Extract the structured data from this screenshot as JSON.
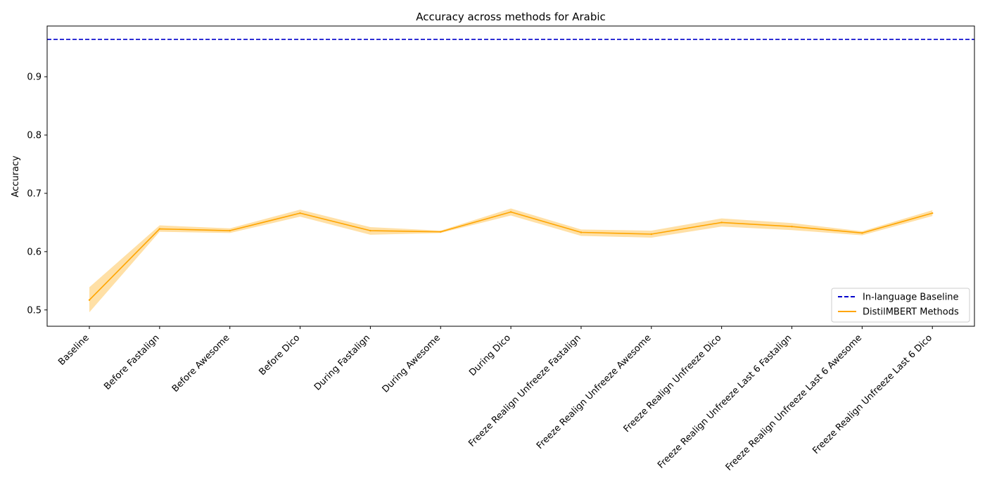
{
  "chart_data": {
    "type": "line",
    "title": "Accuracy across methods for Arabic",
    "xlabel": "",
    "ylabel": "Accuracy",
    "ylim": [
      0.472,
      0.987
    ],
    "yticks": [
      0.5,
      0.6,
      0.7,
      0.8,
      0.9
    ],
    "ytick_labels": [
      "0.5",
      "0.6",
      "0.7",
      "0.8",
      "0.9"
    ],
    "grid": false,
    "legend_position": "bottom-right",
    "categories": [
      "Baseline",
      "Before Fastalign",
      "Before Awesome",
      "Before Dico",
      "During Fastalign",
      "During Awesome",
      "During Dico",
      "Freeze Realign Unfreeze Fastalign",
      "Freeze Realign Unfreeze Awesome",
      "Freeze Realign Unfreeze Dico",
      "Freeze Realign Unfreeze Last 6 Fastalign",
      "Freeze Realign Unfreeze Last 6 Awesome",
      "Freeze Realign Unfreeze Last 6 Dico"
    ],
    "reference_line": {
      "name": "In-language Baseline",
      "value": 0.964,
      "color": "#0000cc",
      "style": "dashed"
    },
    "series": [
      {
        "name": "DistilMBERT Methods",
        "color": "#ffa500",
        "values": [
          0.517,
          0.639,
          0.636,
          0.666,
          0.636,
          0.634,
          0.668,
          0.633,
          0.63,
          0.65,
          0.643,
          0.632,
          0.666
        ],
        "lower": [
          0.496,
          0.634,
          0.632,
          0.66,
          0.629,
          0.632,
          0.662,
          0.627,
          0.624,
          0.643,
          0.637,
          0.628,
          0.661
        ],
        "upper": [
          0.539,
          0.645,
          0.64,
          0.672,
          0.642,
          0.636,
          0.674,
          0.638,
          0.636,
          0.657,
          0.649,
          0.635,
          0.671
        ]
      }
    ]
  }
}
